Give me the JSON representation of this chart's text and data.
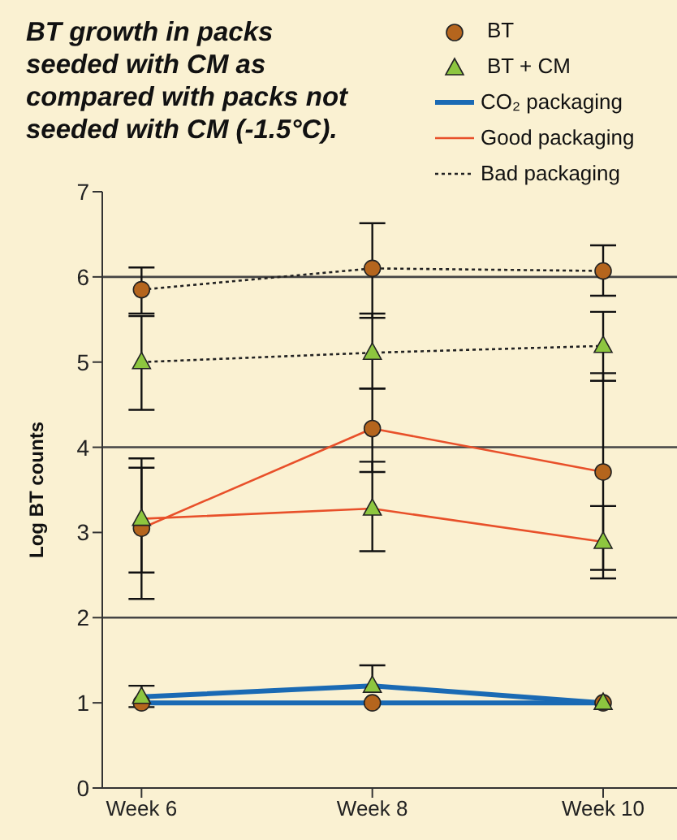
{
  "chart_data": {
    "type": "line",
    "title": "BT growth in packs seeded with CM as compared with packs not seeded with CM (-1.5°C).",
    "ylabel": "Log BT counts",
    "categories": [
      "Week 6",
      "Week 8",
      "Week 10"
    ],
    "ylim": [
      0,
      7
    ],
    "yticks": [
      0,
      1,
      2,
      3,
      4,
      5,
      6,
      7
    ],
    "annotations": [
      "BT",
      "BT + CM",
      "CO₂ packaging",
      "Good packaging",
      "Bad packaging"
    ],
    "ref_lines": [
      {
        "axis": "y",
        "value": 2,
        "color": "#444444"
      },
      {
        "axis": "y",
        "value": 4,
        "color": "#444444"
      },
      {
        "axis": "y",
        "value": 6,
        "color": "#444444"
      }
    ],
    "series": [
      {
        "color": "#1a6ab4",
        "marker": "circle",
        "line_style": "solid",
        "values": [
          1.0,
          1.0,
          1.0
        ]
      },
      {
        "color": "#1a6ab4",
        "marker": "triangle",
        "line_style": "solid",
        "values": [
          1.07,
          1.2,
          1.0
        ],
        "errors": [
          [
            0.95,
            1.2
          ],
          [
            1.2,
            1.44
          ],
          null
        ]
      },
      {
        "color": "#e8502a",
        "marker": "circle",
        "line_style": "solid",
        "values": [
          3.05,
          4.22,
          3.71
        ],
        "errors": [
          [
            2.22,
            3.87
          ],
          [
            3.71,
            4.69
          ],
          [
            2.56,
            4.87
          ]
        ]
      },
      {
        "color": "#e8502a",
        "marker": "triangle",
        "line_style": "solid",
        "values": [
          3.16,
          3.28,
          2.89
        ],
        "errors": [
          [
            2.53,
            3.76
          ],
          [
            2.78,
            3.83
          ],
          [
            2.46,
            3.31
          ]
        ]
      },
      {
        "color": "#222222",
        "marker": "circle",
        "line_style": "dotted",
        "values": [
          5.85,
          6.1,
          6.07
        ],
        "errors": [
          [
            5.57,
            6.11
          ],
          [
            5.52,
            6.63
          ],
          [
            5.78,
            6.37
          ]
        ]
      },
      {
        "color": "#222222",
        "marker": "triangle",
        "line_style": "dotted",
        "values": [
          5.0,
          5.11,
          5.19
        ],
        "errors": [
          [
            4.44,
            5.54
          ],
          [
            4.69,
            5.57
          ],
          [
            4.78,
            5.59
          ]
        ]
      }
    ]
  }
}
